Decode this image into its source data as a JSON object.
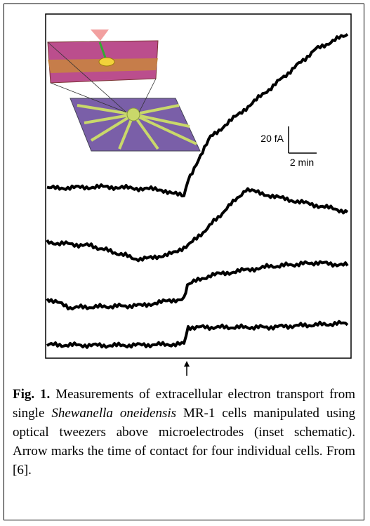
{
  "figure": {
    "scale_bar": {
      "current": "20 fA",
      "time": "2 min"
    }
  },
  "caption": {
    "label": "Fig. 1.",
    "segments": [
      "Measurements of extracellular electron transport from single ",
      "Shewanella oneidensis",
      " MR-1 cells manipulated using optical tweezers above microelectrodes (inset schematic).  Arrow marks the time of contact for four individual cells. From [6]."
    ]
  }
}
